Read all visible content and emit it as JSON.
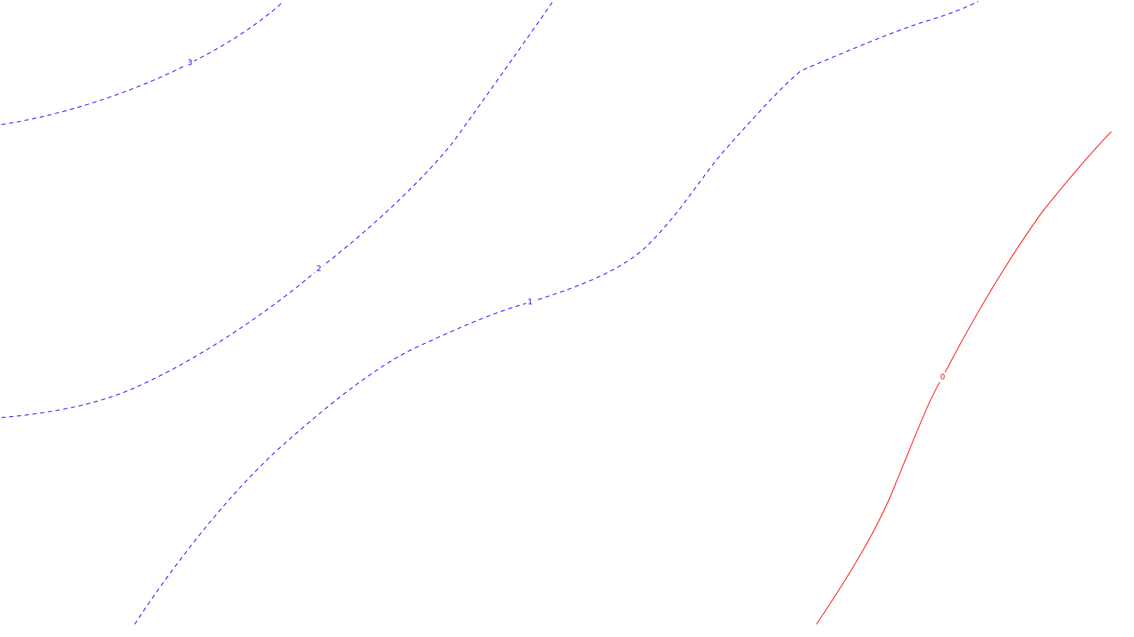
{
  "chart_data": {
    "type": "contour",
    "title": "",
    "xlabel": "",
    "ylabel": "",
    "grid": false,
    "levels": [
      {
        "level": 3,
        "label": "3",
        "color": "#0000ff",
        "style": "dashed"
      },
      {
        "level": 2,
        "label": "2",
        "color": "#0000ff",
        "style": "dashed"
      },
      {
        "level": 1,
        "label": "1",
        "color": "#0000ff",
        "style": "dashed"
      },
      {
        "level": 0,
        "label": "0",
        "color": "#ff0000",
        "style": "solid"
      }
    ]
  }
}
